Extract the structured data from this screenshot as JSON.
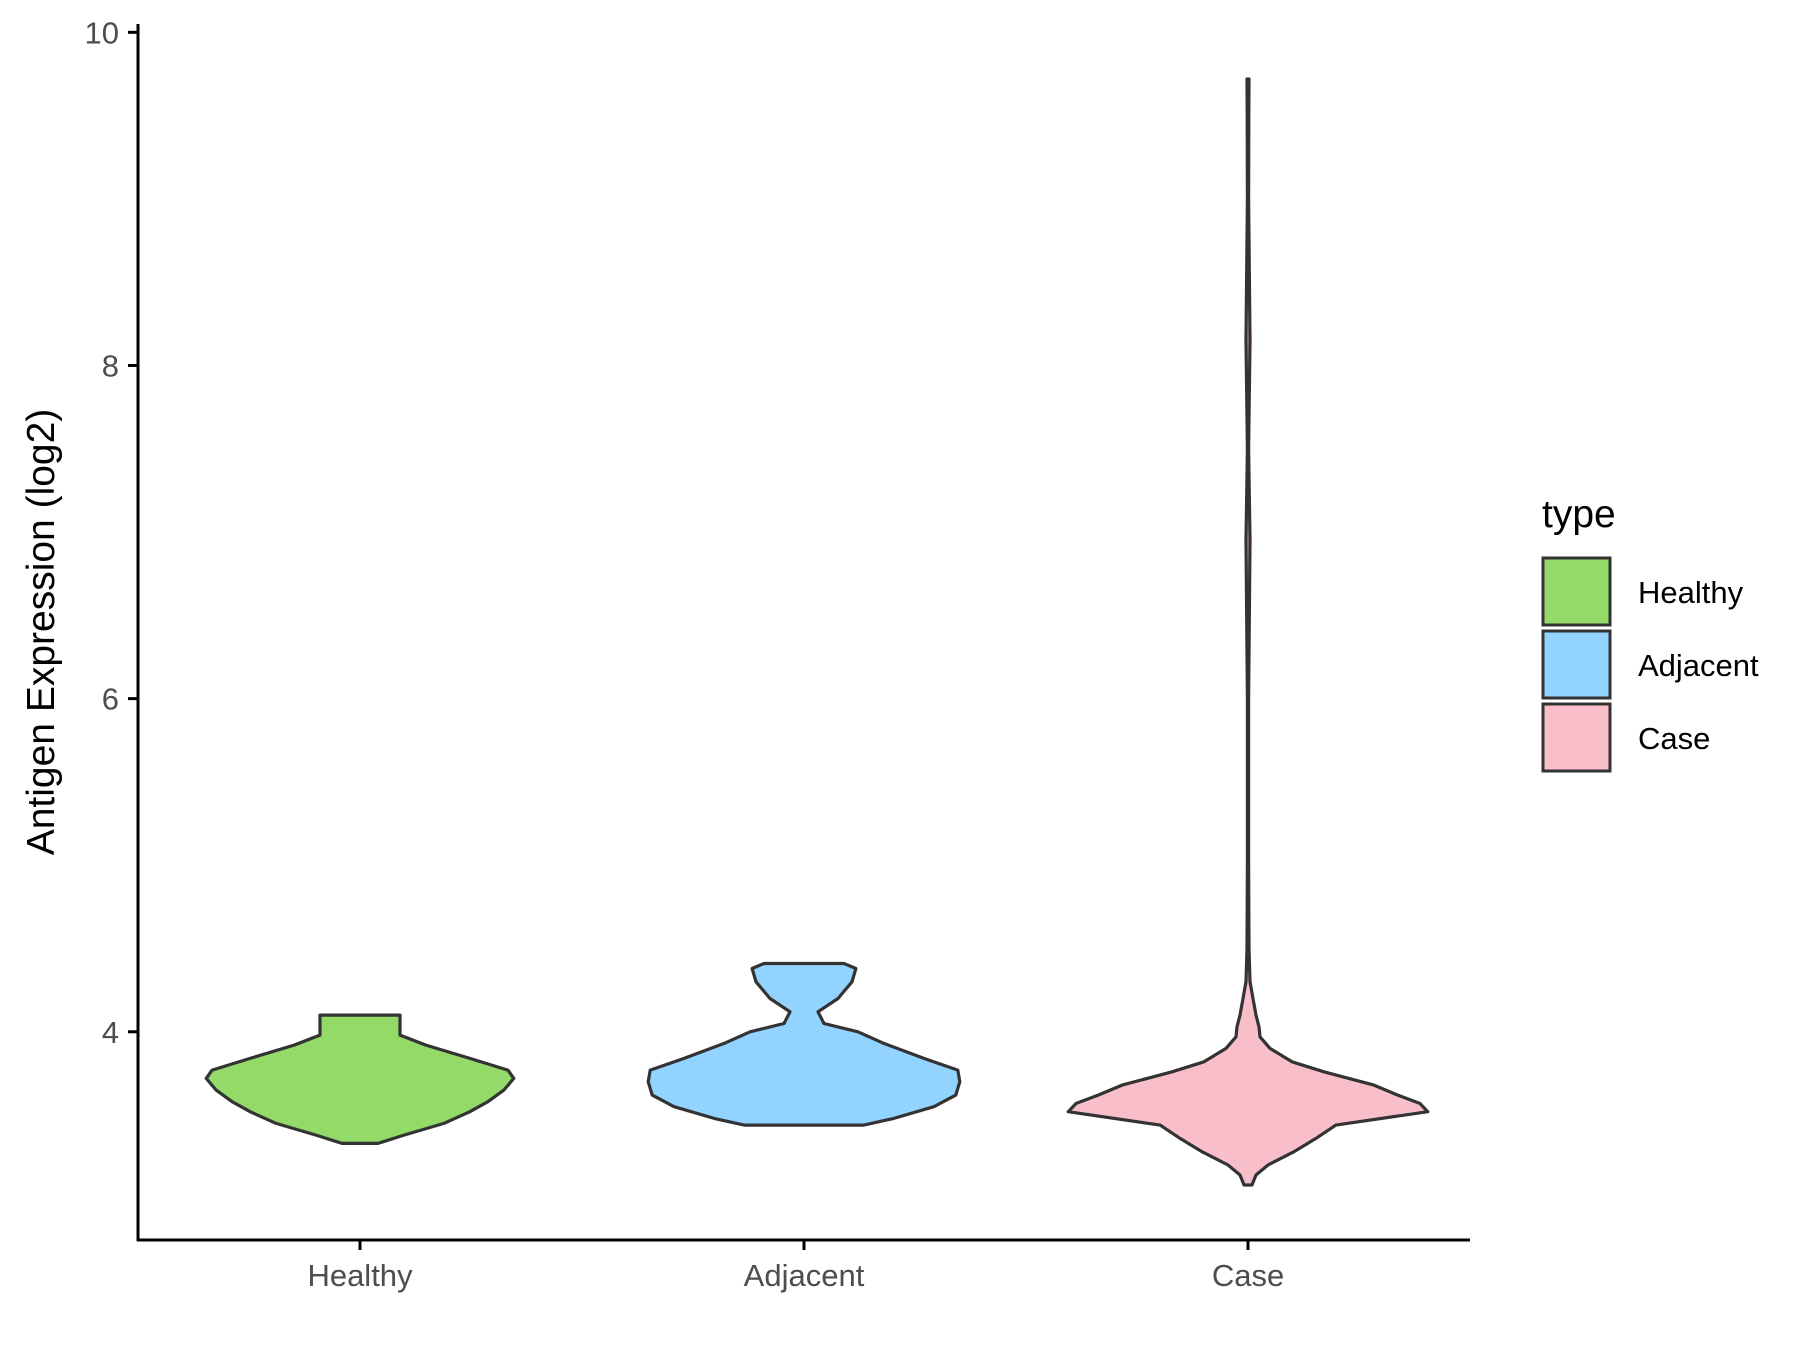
{
  "chart_data": {
    "type": "violin",
    "ylabel": "Antigen Expression (log2)",
    "xlabel": "",
    "ylim": [
      2.75,
      10.05
    ],
    "y_ticks": [
      "4",
      "6",
      "8",
      "10"
    ],
    "categories": [
      "Healthy",
      "Adjacent",
      "Case"
    ],
    "legend": {
      "title": "type",
      "position": "right",
      "entries": [
        "Healthy",
        "Adjacent",
        "Case"
      ]
    },
    "grid": false,
    "series": [
      {
        "name": "Healthy",
        "color": "#93DA69",
        "density": [
          [
            3.33,
            0.09
          ],
          [
            3.38,
            0.22
          ],
          [
            3.45,
            0.42
          ],
          [
            3.52,
            0.55
          ],
          [
            3.58,
            0.64
          ],
          [
            3.65,
            0.72
          ],
          [
            3.72,
            0.77
          ],
          [
            3.77,
            0.74
          ],
          [
            3.84,
            0.55
          ],
          [
            3.92,
            0.33
          ],
          [
            3.98,
            0.2
          ],
          [
            4.05,
            0.2
          ],
          [
            4.1,
            0.2
          ]
        ]
      },
      {
        "name": "Adjacent",
        "color": "#92D3FF",
        "density": [
          [
            3.44,
            0.3
          ],
          [
            3.48,
            0.45
          ],
          [
            3.55,
            0.65
          ],
          [
            3.62,
            0.76
          ],
          [
            3.7,
            0.78
          ],
          [
            3.77,
            0.77
          ],
          [
            3.84,
            0.6
          ],
          [
            3.93,
            0.4
          ],
          [
            4.0,
            0.27
          ],
          [
            4.05,
            0.1
          ],
          [
            4.12,
            0.07
          ],
          [
            4.2,
            0.17
          ],
          [
            4.3,
            0.24
          ],
          [
            4.38,
            0.26
          ],
          [
            4.41,
            0.2
          ]
        ]
      },
      {
        "name": "Case",
        "color": "#F8BFCB",
        "density": [
          [
            3.08,
            0.02
          ],
          [
            3.14,
            0.04
          ],
          [
            3.2,
            0.1
          ],
          [
            3.28,
            0.23
          ],
          [
            3.36,
            0.34
          ],
          [
            3.44,
            0.44
          ],
          [
            3.52,
            0.9
          ],
          [
            3.57,
            0.86
          ],
          [
            3.62,
            0.75
          ],
          [
            3.68,
            0.63
          ],
          [
            3.76,
            0.38
          ],
          [
            3.82,
            0.22
          ],
          [
            3.9,
            0.11
          ],
          [
            3.97,
            0.06
          ],
          [
            4.03,
            0.055
          ],
          [
            4.1,
            0.04
          ],
          [
            4.2,
            0.025
          ],
          [
            4.3,
            0.01
          ],
          [
            4.5,
            0.005
          ],
          [
            5.0,
            0.003
          ],
          [
            6.0,
            0.003
          ],
          [
            6.95,
            0.01
          ],
          [
            7.5,
            0.003
          ],
          [
            8.15,
            0.01
          ],
          [
            9.0,
            0.003
          ],
          [
            9.5,
            0.004
          ],
          [
            9.72,
            0.005
          ]
        ]
      }
    ]
  }
}
